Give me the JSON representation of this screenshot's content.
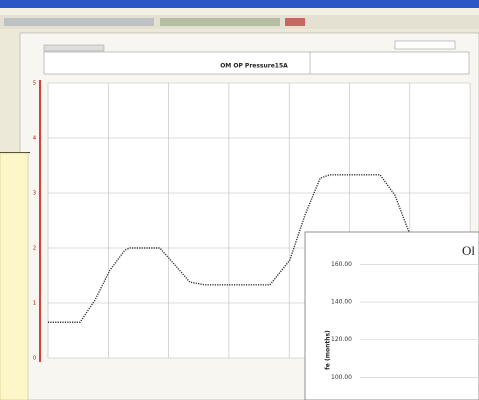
{
  "chart_data": [
    {
      "type": "line",
      "title": "OM OP Pressure15A",
      "x": [
        0,
        7.6,
        11.1,
        14.7,
        18.2,
        19.4,
        26.5,
        30.1,
        33.6,
        37.2,
        52.6,
        57.3,
        60.9,
        64.5,
        66.8,
        78.7,
        82.2,
        85.8
      ],
      "series": [
        {
          "name": "OM OP Pressure15A",
          "color": "#333333",
          "values": [
            0.65,
            0.65,
            1.05,
            1.6,
            1.96,
            2.0,
            2.0,
            1.69,
            1.38,
            1.33,
            1.33,
            1.78,
            2.6,
            3.27,
            3.33,
            3.33,
            2.96,
            2.24
          ]
        }
      ],
      "xlim": [
        0,
        100
      ],
      "ylim": [
        0,
        5
      ],
      "yticks": [
        0,
        1,
        2,
        3,
        4,
        5
      ],
      "grid": true
    },
    {
      "type": "line",
      "title": "Ol",
      "y_label": "fe (months)",
      "ylim": [
        88,
        165
      ],
      "yticks": [
        {
          "value": 100,
          "label": "100.00"
        },
        {
          "value": 120,
          "label": "120.00"
        },
        {
          "value": 140,
          "label": "140.00"
        },
        {
          "value": 160,
          "label": "160.00"
        }
      ],
      "grid": true
    }
  ]
}
